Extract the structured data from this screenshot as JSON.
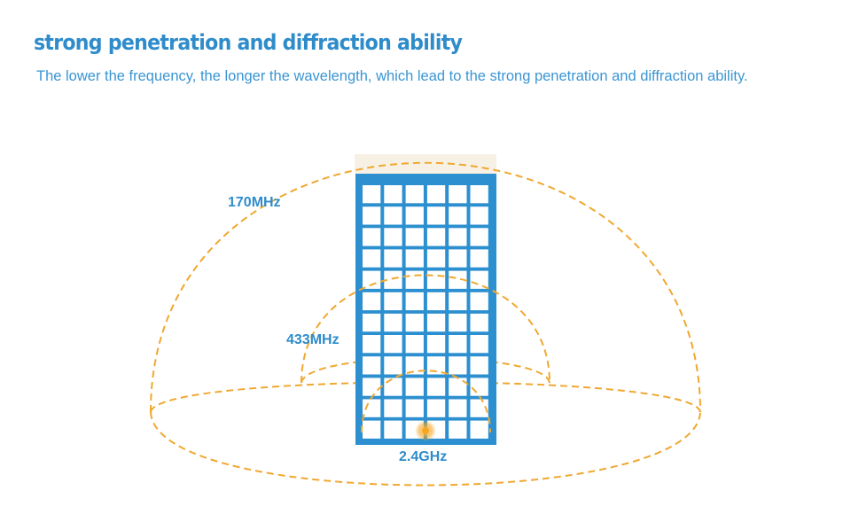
{
  "header": {
    "title": "strong penetration and diffraction ability",
    "subtitle": "The lower the frequency, the longer the wavelength, which lead to the strong penetration and diffraction ability."
  },
  "diagram": {
    "frequencies": [
      {
        "label": "170MHz"
      },
      {
        "label": "433MHz"
      },
      {
        "label": "2.4GHz"
      }
    ],
    "building": {
      "columns": 6,
      "rows": 12
    },
    "colors": {
      "accent": "#2f8ccb",
      "wave": "#f0a830",
      "building": "#2b8fd0",
      "window": "#ffffff",
      "roof": "#f6f1e4",
      "source": "#f5a623"
    },
    "icons": {
      "source": "signal-source-icon"
    }
  }
}
